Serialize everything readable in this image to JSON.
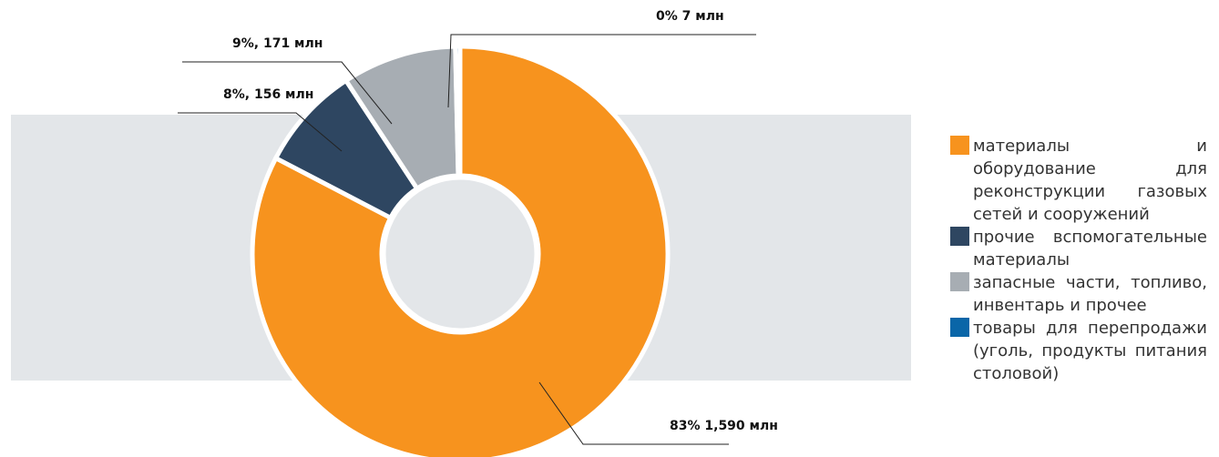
{
  "chart_data": {
    "type": "donut",
    "categories": [
      "материалы и оборудование для реконструкции газовых сетей и сооружений",
      "прочие вспомогательные материалы",
      "запасные части, топливо, инвентарь и прочее",
      "товары для перепродажи (уголь, продукты питания столовой)"
    ],
    "values": [
      1590,
      156,
      171,
      7
    ],
    "value_labels": [
      "83% 1,590 млн",
      "8%, 156 млн",
      "9%, 171 млн",
      "0% 7 млн"
    ],
    "colors": [
      "#f7931e",
      "#2e4661",
      "#a7adb3",
      "#0a66a8"
    ],
    "legend": "right"
  }
}
